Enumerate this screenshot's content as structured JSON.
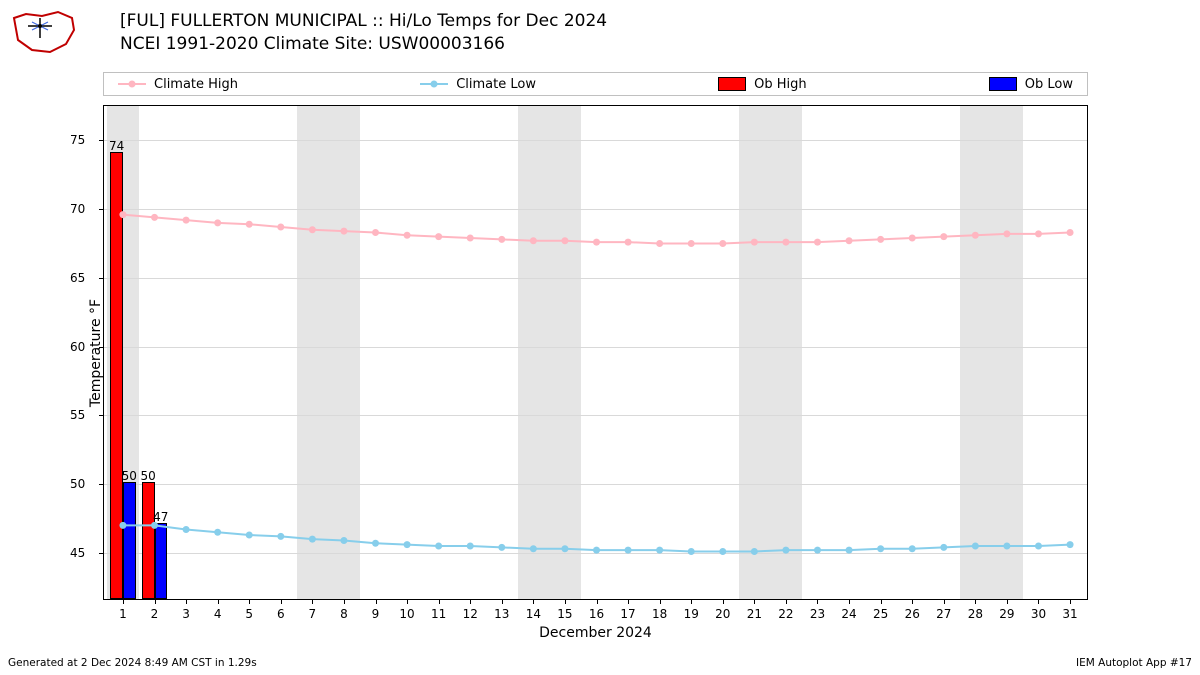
{
  "title_line1": "[FUL] FULLERTON MUNICIPAL :: Hi/Lo Temps for Dec 2024",
  "title_line2": "NCEI 1991-2020 Climate Site: USW00003166",
  "footer_left": "Generated at 2 Dec 2024 8:49 AM CST in 1.29s",
  "footer_right": "IEM Autoplot App #17",
  "xlabel": "December 2024",
  "ylabel": "Temperature °F",
  "legend": {
    "climate_high": "Climate High",
    "climate_low": "Climate Low",
    "ob_high": "Ob High",
    "ob_low": "Ob Low"
  },
  "colors": {
    "climate_high": "#ffb6c1",
    "climate_low": "#87ceeb",
    "ob_high": "#ff0000",
    "ob_low": "#0000ff",
    "shade": "#e5e5e5",
    "grid": "#d9d9d9",
    "bg": "#ffffff",
    "text": "#000000"
  },
  "chart": {
    "type": "mixed-line-bar",
    "x_days": [
      1,
      2,
      3,
      4,
      5,
      6,
      7,
      8,
      9,
      10,
      11,
      12,
      13,
      14,
      15,
      16,
      17,
      18,
      19,
      20,
      21,
      22,
      23,
      24,
      25,
      26,
      27,
      28,
      29,
      30,
      31
    ],
    "xlim": [
      0.4,
      31.6
    ],
    "ylim": [
      41.5,
      77.5
    ],
    "yticks": [
      45,
      50,
      55,
      60,
      65,
      70,
      75
    ],
    "climate_high": [
      69.6,
      69.4,
      69.2,
      69.0,
      68.9,
      68.7,
      68.5,
      68.4,
      68.3,
      68.1,
      68.0,
      67.9,
      67.8,
      67.7,
      67.7,
      67.6,
      67.6,
      67.5,
      67.5,
      67.5,
      67.6,
      67.6,
      67.6,
      67.7,
      67.8,
      67.9,
      68.0,
      68.1,
      68.2,
      68.2,
      68.3
    ],
    "climate_low": [
      47.0,
      47.0,
      46.7,
      46.5,
      46.3,
      46.2,
      46.0,
      45.9,
      45.7,
      45.6,
      45.5,
      45.5,
      45.4,
      45.3,
      45.3,
      45.2,
      45.2,
      45.2,
      45.1,
      45.1,
      45.1,
      45.2,
      45.2,
      45.2,
      45.3,
      45.3,
      45.4,
      45.5,
      45.5,
      45.5,
      45.6
    ],
    "ob_high": [
      {
        "day": 1,
        "value": 74,
        "label": "74"
      },
      {
        "day": 2,
        "value": 50,
        "label": "50"
      }
    ],
    "ob_low": [
      {
        "day": 1,
        "value": 50,
        "label": "50"
      },
      {
        "day": 2,
        "value": 47,
        "label": "47"
      }
    ],
    "shaded_weekend_bands": [
      {
        "start": 0.5,
        "end": 1.5
      },
      {
        "start": 6.5,
        "end": 8.5
      },
      {
        "start": 13.5,
        "end": 15.5
      },
      {
        "start": 20.5,
        "end": 22.5
      },
      {
        "start": 27.5,
        "end": 29.5
      }
    ],
    "bar_half_width": 0.2,
    "marker_radius": 3.5,
    "line_width": 2
  },
  "logo": {
    "outline": "#c00000",
    "accent": "#4169e1"
  }
}
